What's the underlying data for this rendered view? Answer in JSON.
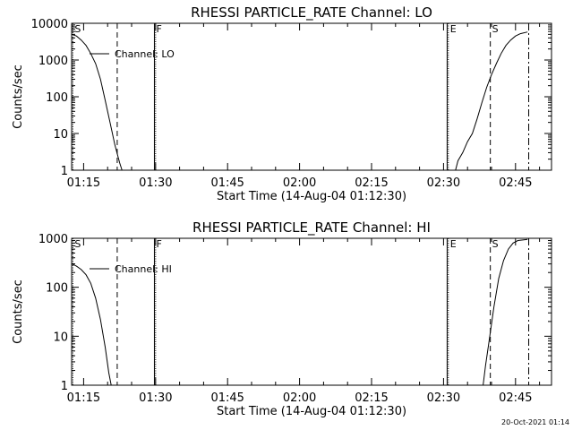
{
  "footer": {
    "timestamp": "20-Oct-2021 01:14"
  },
  "chart_data": [
    {
      "type": "line",
      "title": "RHESSI PARTICLE_RATE Channel: LO",
      "xlabel": "Start Time (14-Aug-04 01:12:30)",
      "ylabel": "Counts/sec",
      "xlim": [
        "01:12:30",
        "02:52:30"
      ],
      "yscale": "log",
      "ylim": [
        1,
        10000
      ],
      "x_ticks": [
        "01:15",
        "01:30",
        "01:45",
        "02:00",
        "02:15",
        "02:30",
        "02:45"
      ],
      "y_ticks": [
        {
          "value": 1,
          "label": "1"
        },
        {
          "value": 10,
          "label": "10"
        },
        {
          "value": 100,
          "label": "100"
        },
        {
          "value": 1000,
          "label": "1000"
        },
        {
          "value": 10000,
          "label": "10000"
        }
      ],
      "legend": {
        "label": "Channel: LO",
        "position": "top-left"
      },
      "markers": [
        {
          "time": "01:12:45",
          "label": "S",
          "style": "dotted"
        },
        {
          "time": "01:22:00",
          "label": "",
          "style": "dashed"
        },
        {
          "time": "01:29:45",
          "label": "F",
          "style": "solid"
        },
        {
          "time": "01:30:00",
          "label": "",
          "style": "dotted"
        },
        {
          "time": "02:30:45",
          "label": "",
          "style": "solid"
        },
        {
          "time": "02:31:00",
          "label": "E",
          "style": "dotted"
        },
        {
          "time": "02:39:45",
          "label": "S",
          "style": "dashed"
        },
        {
          "time": "02:47:45",
          "label": "",
          "style": "dashdot"
        }
      ],
      "series": [
        {
          "segments": [
            [
              [
                "01:12:30",
                5000
              ],
              [
                "01:13:30",
                4500
              ],
              [
                "01:14:30",
                3500
              ],
              [
                "01:15:30",
                2500
              ],
              [
                "01:16:30",
                1500
              ],
              [
                "01:17:30",
                800
              ],
              [
                "01:18:30",
                300
              ],
              [
                "01:19:30",
                80
              ],
              [
                "01:20:30",
                20
              ],
              [
                "01:21:30",
                5
              ],
              [
                "01:22:30",
                1.6
              ],
              [
                "01:23:00",
                1
              ]
            ],
            [
              [
                "02:32:30",
                1
              ],
              [
                "02:33:00",
                1.8
              ],
              [
                "02:34:00",
                3
              ],
              [
                "02:35:00",
                6
              ],
              [
                "02:36:00",
                10
              ],
              [
                "02:37:00",
                25
              ],
              [
                "02:38:00",
                70
              ],
              [
                "02:39:00",
                180
              ],
              [
                "02:40:00",
                400
              ],
              [
                "02:41:00",
                800
              ],
              [
                "02:42:00",
                1500
              ],
              [
                "02:43:00",
                2500
              ],
              [
                "02:44:00",
                3500
              ],
              [
                "02:45:00",
                4500
              ],
              [
                "02:46:00",
                5200
              ],
              [
                "02:47:30",
                5800
              ]
            ]
          ]
        }
      ]
    },
    {
      "type": "line",
      "title": "RHESSI PARTICLE_RATE Channel: HI",
      "xlabel": "Start Time (14-Aug-04 01:12:30)",
      "ylabel": "Counts/sec",
      "xlim": [
        "01:12:30",
        "02:52:30"
      ],
      "yscale": "log",
      "ylim": [
        1,
        1000
      ],
      "x_ticks": [
        "01:15",
        "01:30",
        "01:45",
        "02:00",
        "02:15",
        "02:30",
        "02:45"
      ],
      "y_ticks": [
        {
          "value": 1,
          "label": "1"
        },
        {
          "value": 10,
          "label": "10"
        },
        {
          "value": 100,
          "label": "100"
        },
        {
          "value": 1000,
          "label": "1000"
        }
      ],
      "legend": {
        "label": "Channel: HI",
        "position": "top-left"
      },
      "markers": [
        {
          "time": "01:12:45",
          "label": "S",
          "style": "dotted"
        },
        {
          "time": "01:22:00",
          "label": "",
          "style": "dashed"
        },
        {
          "time": "01:29:45",
          "label": "F",
          "style": "solid"
        },
        {
          "time": "01:30:00",
          "label": "",
          "style": "dotted"
        },
        {
          "time": "02:30:45",
          "label": "",
          "style": "solid"
        },
        {
          "time": "02:31:00",
          "label": "E",
          "style": "dotted"
        },
        {
          "time": "02:39:45",
          "label": "S",
          "style": "dashed"
        },
        {
          "time": "02:47:45",
          "label": "",
          "style": "dashdot"
        }
      ],
      "series": [
        {
          "segments": [
            [
              [
                "01:12:30",
                300
              ],
              [
                "01:13:30",
                270
              ],
              [
                "01:14:30",
                230
              ],
              [
                "01:15:30",
                180
              ],
              [
                "01:16:30",
                120
              ],
              [
                "01:17:30",
                60
              ],
              [
                "01:18:30",
                22
              ],
              [
                "01:19:30",
                6
              ],
              [
                "01:20:15",
                1.8
              ],
              [
                "01:20:45",
                1
              ]
            ],
            [
              [
                "02:38:15",
                1
              ],
              [
                "02:38:45",
                2.5
              ],
              [
                "02:39:30",
                8
              ],
              [
                "02:40:30",
                40
              ],
              [
                "02:41:30",
                150
              ],
              [
                "02:42:30",
                350
              ],
              [
                "02:43:30",
                600
              ],
              [
                "02:44:30",
                800
              ],
              [
                "02:45:30",
                900
              ],
              [
                "02:47:30",
                950
              ]
            ]
          ]
        }
      ]
    }
  ]
}
